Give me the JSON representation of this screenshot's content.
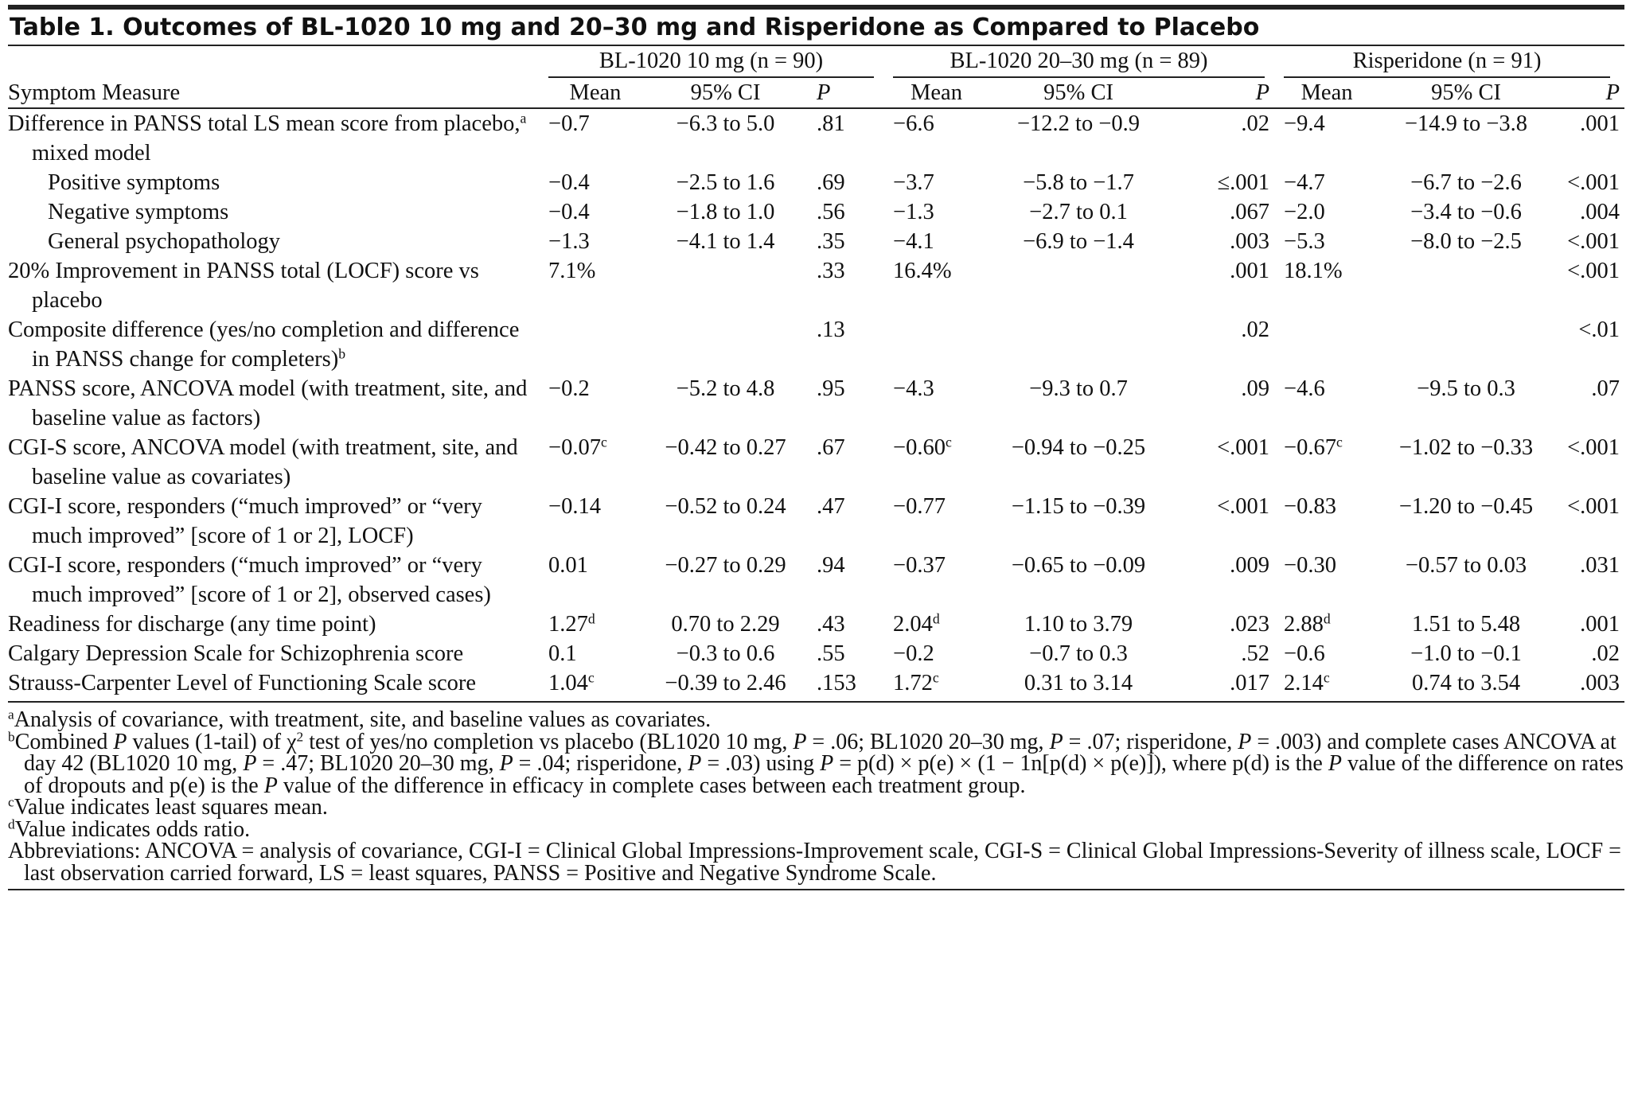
{
  "title": "Table 1. Outcomes of BL-1020 10 mg and 20–30 mg and Risperidone as Compared to Placebo",
  "header": {
    "groups": [
      "BL-1020 10 mg (n = 90)",
      "BL-1020 20–30 mg (n = 89)",
      "Risperidone (n = 91)"
    ],
    "row_label": "Symptom Measure",
    "columns": [
      "Mean",
      "95% CI",
      "P"
    ]
  },
  "rows": [
    {
      "label": [
        "Difference in PANSS total LS mean score from placebo,",
        {
          "sup": "a"
        },
        " mixed model"
      ],
      "cells": [
        "−0.7",
        "−6.3 to 5.0",
        ".81",
        "−6.6",
        "−12.2 to −0.9",
        ".02",
        "−9.4",
        "−14.9 to −3.8",
        ".001"
      ],
      "subrows": [
        {
          "label": [
            "Positive symptoms"
          ],
          "cells": [
            "−0.4",
            "−2.5 to 1.6",
            ".69",
            "−3.7",
            "−5.8 to −1.7",
            "≤.001",
            "−4.7",
            "−6.7 to −2.6",
            "<.001"
          ]
        },
        {
          "label": [
            "Negative symptoms"
          ],
          "cells": [
            "−0.4",
            "−1.8 to 1.0",
            ".56",
            "−1.3",
            "−2.7 to 0.1",
            ".067",
            "−2.0",
            "−3.4 to −0.6",
            ".004"
          ]
        },
        {
          "label": [
            "General psychopathology"
          ],
          "cells": [
            "−1.3",
            "−4.1 to 1.4",
            ".35",
            "−4.1",
            "−6.9 to −1.4",
            ".003",
            "−5.3",
            "−8.0 to −2.5",
            "<.001"
          ]
        }
      ]
    },
    {
      "label": [
        "20% Improvement in PANSS total (LOCF) score vs placebo"
      ],
      "cells": [
        "7.1%",
        null,
        ".33",
        "16.4%",
        null,
        ".001",
        "18.1%",
        null,
        "<.001"
      ]
    },
    {
      "label": [
        "Composite difference (yes/no completion and difference in PANSS change for completers)",
        {
          "sup": "b"
        }
      ],
      "cells": [
        null,
        null,
        ".13",
        null,
        null,
        ".02",
        null,
        null,
        "<.01"
      ]
    },
    {
      "label": [
        "PANSS score, ANCOVA model (with treatment, site, and baseline value as factors)"
      ],
      "cells": [
        "−0.2",
        "−5.2 to 4.8",
        ".95",
        "−4.3",
        "−9.3 to 0.7",
        ".09",
        "−4.6",
        "−9.5 to 0.3",
        ".07"
      ]
    },
    {
      "label": [
        "CGI-S score, ANCOVA model (with treatment, site, and baseline value as covariates)"
      ],
      "cells": [
        [
          "−0.07",
          {
            "sup": "c"
          }
        ],
        "−0.42 to 0.27",
        ".67",
        [
          "−0.60",
          {
            "sup": "c"
          }
        ],
        "−0.94 to −0.25",
        "<.001",
        [
          "−0.67",
          {
            "sup": "c"
          }
        ],
        "−1.02 to −0.33",
        "<.001"
      ]
    },
    {
      "label": [
        "CGI-I score, responders (“much improved” or “very much improved” [score of 1 or 2], LOCF)"
      ],
      "cells": [
        "−0.14",
        "−0.52 to 0.24",
        ".47",
        "−0.77",
        "−1.15 to −0.39",
        "<.001",
        "−0.83",
        "−1.20 to −0.45",
        "<.001"
      ]
    },
    {
      "label": [
        "CGI-I score, responders (“much improved” or “very much improved” [score of 1 or 2], observed cases)"
      ],
      "cells": [
        "0.01",
        "−0.27 to 0.29",
        ".94",
        "−0.37",
        "−0.65 to −0.09",
        ".009",
        "−0.30",
        "−0.57 to 0.03",
        ".031"
      ]
    },
    {
      "label": [
        "Readiness for discharge (any time point)"
      ],
      "cells": [
        [
          "1.27",
          {
            "sup": "d"
          }
        ],
        "0.70 to 2.29",
        ".43",
        [
          "2.04",
          {
            "sup": "d"
          }
        ],
        "1.10 to 3.79",
        ".023",
        [
          "2.88",
          {
            "sup": "d"
          }
        ],
        "1.51 to 5.48",
        ".001"
      ]
    },
    {
      "label": [
        "Calgary Depression Scale for Schizophrenia score"
      ],
      "cells": [
        "0.1",
        "−0.3 to 0.6",
        ".55",
        "−0.2",
        "−0.7 to 0.3",
        ".52",
        "−0.6",
        "−1.0 to −0.1",
        ".02"
      ]
    },
    {
      "label": [
        "Strauss-Carpenter Level of Functioning Scale score"
      ],
      "cells": [
        [
          "1.04",
          {
            "sup": "c"
          }
        ],
        "−0.39 to 2.46",
        ".153",
        [
          "1.72",
          {
            "sup": "c"
          }
        ],
        "0.31 to 3.14",
        ".017",
        [
          "2.14",
          {
            "sup": "c"
          }
        ],
        "0.74 to 3.54",
        ".003"
      ]
    }
  ],
  "footnotes": [
    [
      {
        "sup": "a"
      },
      "Analysis of covariance, with treatment, site, and baseline values as covariates."
    ],
    [
      {
        "sup": "b"
      },
      "Combined ",
      {
        "i": "P"
      },
      " values (1-tail) of χ",
      {
        "sup": "2"
      },
      " test of yes/no completion vs placebo (BL1020 10 mg, ",
      {
        "i": "P"
      },
      " = .06; BL1020 20–30 mg, ",
      {
        "i": "P"
      },
      " = .07; risperidone, ",
      {
        "i": "P"
      },
      " = .003) and complete cases ANCOVA at day 42 (BL1020 10 mg, ",
      {
        "i": "P"
      },
      " = .47; BL1020 20–30 mg, ",
      {
        "i": "P"
      },
      " = .04; risperidone, ",
      {
        "i": "P"
      },
      " = .03) using ",
      {
        "i": "P"
      },
      " = p(d) × p(e) × (1 − 1n[p(d) × p(e)]), where p(d) is the ",
      {
        "i": "P"
      },
      " value of the difference on rates of dropouts and p(e) is the ",
      {
        "i": "P"
      },
      " value of the difference in efficacy in complete cases between each treatment group."
    ],
    [
      {
        "sup": "c"
      },
      "Value indicates least squares mean."
    ],
    [
      {
        "sup": "d"
      },
      "Value indicates odds ratio."
    ],
    [
      "Abbreviations: ANCOVA = analysis of covariance, CGI-I = Clinical Global Impressions-Improvement scale, CGI-S = Clinical Global Impressions-Severity of illness scale, LOCF = last observation carried forward, LS = least squares, PANSS = Positive and Negative Syndrome Scale."
    ]
  ]
}
